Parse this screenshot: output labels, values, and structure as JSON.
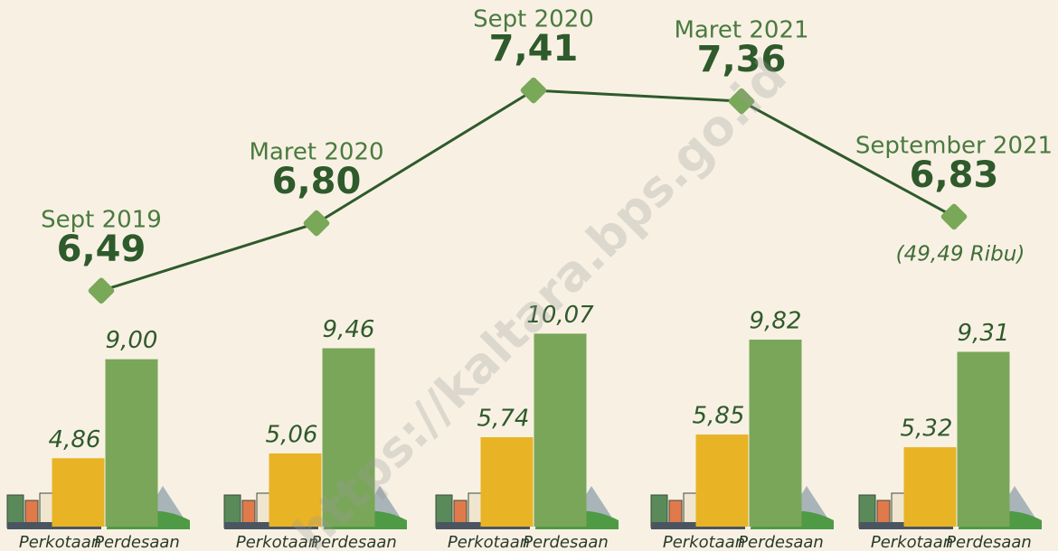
{
  "chart_data": [
    {
      "type": "line",
      "categories": [
        "Sept 2019",
        "Maret 2020",
        "Sept 2020",
        "Maret 2021",
        "September 2021"
      ],
      "values": [
        6.49,
        6.8,
        7.41,
        7.36,
        6.83
      ],
      "value_labels": [
        "6,49",
        "6,80",
        "7,41",
        "7,36",
        "6,83"
      ],
      "annotation": "(49,49 Ribu)",
      "color": "#2f5a2c",
      "marker_color": "#79a858",
      "ylim": [
        6.0,
        7.8
      ]
    },
    {
      "type": "bar",
      "categories": [
        null,
        null,
        null,
        null,
        null
      ],
      "series": [
        {
          "name": "Perkotaan",
          "color": "#e8b325",
          "values": [
            4.86,
            5.06,
            5.74,
            5.85,
            5.32
          ],
          "value_labels": [
            "4,86",
            "5,06",
            "5,74",
            "5,85",
            "5,32"
          ]
        },
        {
          "name": "Perdesaan",
          "color": "#7aa65a",
          "values": [
            9.0,
            9.46,
            10.07,
            9.82,
            9.31
          ],
          "value_labels": [
            "9,00",
            "9,46",
            "10,07",
            "9,82",
            "9,31"
          ]
        }
      ],
      "ylim": [
        2,
        10.5
      ]
    }
  ],
  "watermark": "https://kaltara.bps.go.id"
}
